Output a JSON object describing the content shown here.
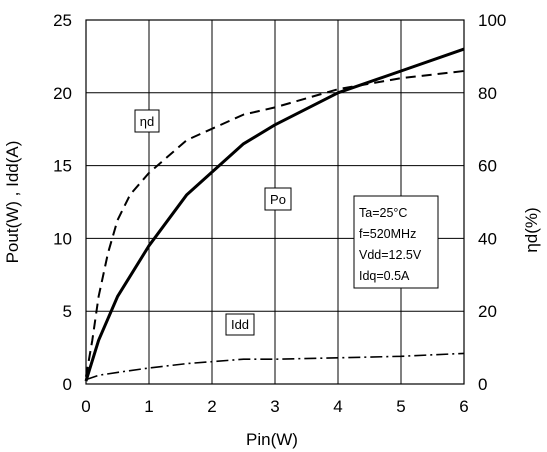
{
  "chart_data": {
    "type": "line",
    "xlabel": "Pin(W)",
    "ylabel_left": "Pout(W) , Idd(A)",
    "ylabel_right": "ηd(%)",
    "xlim": [
      0,
      6
    ],
    "ylim_left": [
      0,
      25
    ],
    "ylim_right": [
      0,
      100
    ],
    "x_ticks": [
      "0",
      "1",
      "2",
      "3",
      "4",
      "5",
      "6"
    ],
    "y_ticks_left": [
      "0",
      "5",
      "10",
      "15",
      "20",
      "25"
    ],
    "y_ticks_right": [
      "0",
      "20",
      "40",
      "60",
      "80",
      "100"
    ],
    "grid": true,
    "series": [
      {
        "name": "Po",
        "axis": "left",
        "style": "solid",
        "x": [
          0,
          0.2,
          0.5,
          1,
          1.6,
          2.5,
          3,
          4,
          5,
          6
        ],
        "y": [
          0.2,
          3,
          6,
          9.5,
          13,
          16.5,
          17.8,
          20,
          21.5,
          23
        ]
      },
      {
        "name": "ηd",
        "axis": "right",
        "style": "dashed",
        "x": [
          0,
          0.1,
          0.2,
          0.35,
          0.5,
          0.7,
          1,
          1.6,
          2.5,
          3,
          4,
          5,
          6
        ],
        "y": [
          2,
          12,
          24,
          36,
          45,
          52,
          58,
          67,
          74,
          76,
          81,
          84,
          86
        ]
      },
      {
        "name": "Idd",
        "axis": "left",
        "style": "dash-dot",
        "x": [
          0,
          0.2,
          0.5,
          1,
          1.6,
          2.5,
          3,
          4,
          5,
          6
        ],
        "y": [
          0.3,
          0.6,
          0.8,
          1.1,
          1.4,
          1.7,
          1.7,
          1.8,
          1.9,
          2.1
        ]
      }
    ],
    "annotations": {
      "po_label": "Po",
      "nd_label": "ηd",
      "idd_label": "Idd",
      "conditions": [
        "Ta=25°C",
        "f=520MHz",
        "Vdd=12.5V",
        "Idq=0.5A"
      ]
    }
  }
}
